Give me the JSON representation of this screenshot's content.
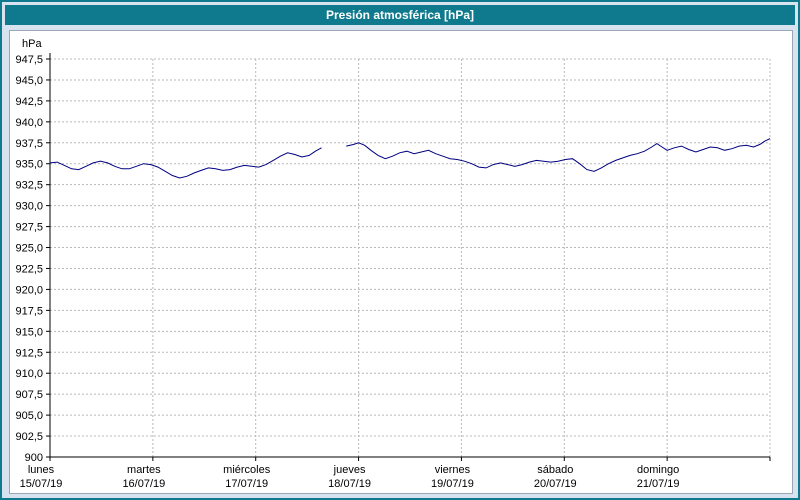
{
  "window": {
    "title": "Presión atmosférica [hPa]"
  },
  "colors": {
    "titlebar": "#0f7a8d",
    "frame_border": "#0f7a8d",
    "page_background": "#d7e3ee",
    "panel_background": "#ffffff",
    "grid": "#b8b8b8",
    "axis": "#000000",
    "line": "#000080"
  },
  "chart_data": {
    "type": "line",
    "title": "Presión atmosférica [hPa]",
    "xlabel": "",
    "ylabel": "hPa",
    "ylim": [
      900,
      947.5
    ],
    "ytick_step": 2.5,
    "grid": "dashed",
    "legend": "none",
    "yticks": {
      "values": [
        947.5,
        945.0,
        942.5,
        940.0,
        937.5,
        935.0,
        932.5,
        930.0,
        927.5,
        925.0,
        922.5,
        920.0,
        917.5,
        915.0,
        912.5,
        910.0,
        907.5,
        905.0,
        902.5,
        900
      ],
      "labels": [
        "947,5",
        "945,0",
        "942,5",
        "940,0",
        "937,5",
        "935,0",
        "932,5",
        "930,0",
        "927,5",
        "925,0",
        "922,5",
        "920,0",
        "917,5",
        "915,0",
        "912,5",
        "910,0",
        "907,5",
        "905,0",
        "902,5",
        "900"
      ]
    },
    "x_axis": {
      "span_days": 7,
      "days": [
        {
          "name": "lunes",
          "date": "15/07/19"
        },
        {
          "name": "martes",
          "date": "16/07/19"
        },
        {
          "name": "miércoles",
          "date": "17/07/19"
        },
        {
          "name": "jueves",
          "date": "18/07/19"
        },
        {
          "name": "viernes",
          "date": "19/07/19"
        },
        {
          "name": "sábado",
          "date": "20/07/19"
        },
        {
          "name": "domingo",
          "date": "21/07/19"
        }
      ]
    },
    "series": [
      {
        "name": "Presión atmosférica",
        "color": "#000080",
        "units": "hPa",
        "x_units": "days from 15/07/19 00:00",
        "segments": [
          [
            [
              0.0,
              935.1
            ],
            [
              0.07,
              935.2
            ],
            [
              0.14,
              934.8
            ],
            [
              0.21,
              934.4
            ],
            [
              0.28,
              934.3
            ],
            [
              0.35,
              934.7
            ],
            [
              0.42,
              935.1
            ],
            [
              0.49,
              935.3
            ],
            [
              0.56,
              935.1
            ],
            [
              0.63,
              934.7
            ],
            [
              0.7,
              934.4
            ],
            [
              0.77,
              934.4
            ],
            [
              0.84,
              934.7
            ],
            [
              0.91,
              935.0
            ],
            [
              0.98,
              934.9
            ],
            [
              1.05,
              934.6
            ],
            [
              1.12,
              934.1
            ],
            [
              1.19,
              933.6
            ],
            [
              1.26,
              933.3
            ],
            [
              1.33,
              933.5
            ],
            [
              1.4,
              933.9
            ],
            [
              1.47,
              934.2
            ],
            [
              1.54,
              934.5
            ],
            [
              1.61,
              934.4
            ],
            [
              1.68,
              934.2
            ],
            [
              1.75,
              934.3
            ],
            [
              1.82,
              934.6
            ],
            [
              1.89,
              934.8
            ],
            [
              1.96,
              934.7
            ],
            [
              2.03,
              934.6
            ],
            [
              2.1,
              934.9
            ],
            [
              2.17,
              935.4
            ],
            [
              2.24,
              935.9
            ],
            [
              2.31,
              936.3
            ],
            [
              2.38,
              936.1
            ],
            [
              2.45,
              935.8
            ],
            [
              2.52,
              936.0
            ],
            [
              2.58,
              936.5
            ],
            [
              2.64,
              936.9
            ]
          ],
          [
            [
              2.88,
              937.1
            ],
            [
              2.95,
              937.3
            ],
            [
              3.0,
              937.5
            ],
            [
              3.06,
              937.2
            ],
            [
              3.12,
              936.6
            ],
            [
              3.19,
              936.0
            ],
            [
              3.26,
              935.6
            ],
            [
              3.33,
              935.9
            ],
            [
              3.4,
              936.3
            ],
            [
              3.47,
              936.5
            ],
            [
              3.54,
              936.2
            ],
            [
              3.61,
              936.4
            ],
            [
              3.68,
              936.6
            ],
            [
              3.75,
              936.2
            ],
            [
              3.82,
              935.9
            ],
            [
              3.89,
              935.6
            ],
            [
              3.96,
              935.5
            ],
            [
              4.03,
              935.3
            ],
            [
              4.1,
              935.0
            ],
            [
              4.17,
              934.6
            ],
            [
              4.24,
              934.5
            ],
            [
              4.31,
              934.9
            ],
            [
              4.38,
              935.1
            ],
            [
              4.45,
              934.9
            ],
            [
              4.52,
              934.7
            ],
            [
              4.59,
              934.9
            ],
            [
              4.66,
              935.2
            ],
            [
              4.73,
              935.4
            ],
            [
              4.8,
              935.3
            ],
            [
              4.87,
              935.2
            ],
            [
              4.94,
              935.3
            ],
            [
              5.01,
              935.5
            ],
            [
              5.08,
              935.6
            ],
            [
              5.15,
              935.0
            ],
            [
              5.22,
              934.3
            ],
            [
              5.29,
              934.1
            ],
            [
              5.36,
              934.5
            ],
            [
              5.43,
              935.0
            ],
            [
              5.5,
              935.4
            ],
            [
              5.57,
              935.7
            ],
            [
              5.64,
              936.0
            ],
            [
              5.71,
              936.2
            ],
            [
              5.78,
              936.5
            ],
            [
              5.85,
              937.0
            ],
            [
              5.9,
              937.4
            ],
            [
              5.95,
              937.0
            ],
            [
              6.0,
              936.6
            ],
            [
              6.07,
              936.9
            ],
            [
              6.14,
              937.1
            ],
            [
              6.21,
              936.7
            ],
            [
              6.28,
              936.4
            ],
            [
              6.35,
              936.7
            ],
            [
              6.42,
              937.0
            ],
            [
              6.49,
              936.9
            ],
            [
              6.56,
              936.6
            ],
            [
              6.63,
              936.8
            ],
            [
              6.7,
              937.1
            ],
            [
              6.77,
              937.2
            ],
            [
              6.84,
              937.0
            ],
            [
              6.9,
              937.3
            ],
            [
              6.95,
              937.7
            ],
            [
              7.0,
              938.0
            ]
          ]
        ]
      }
    ]
  }
}
